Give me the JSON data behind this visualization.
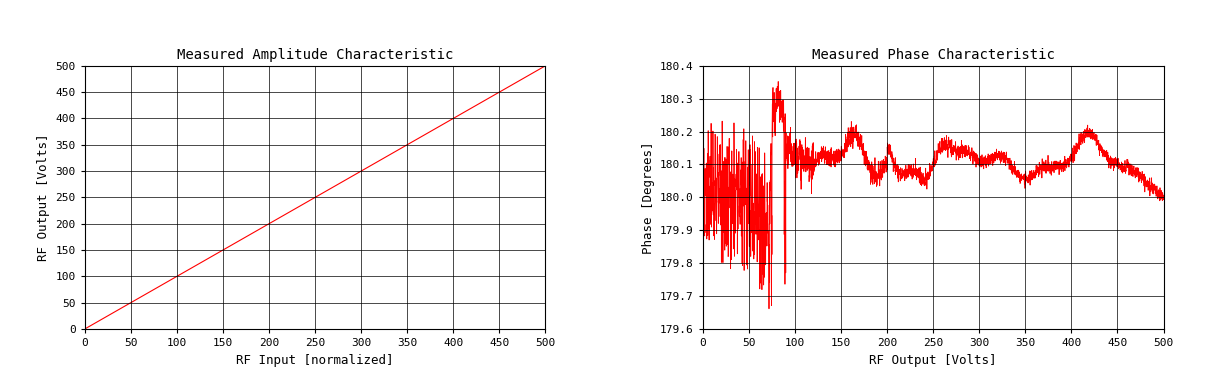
{
  "left_title": "Measured Amplitude Characteristic",
  "left_xlabel": "RF Input [normalized]",
  "left_ylabel": "RF Output [Volts]",
  "left_xlim": [
    0,
    500
  ],
  "left_ylim": [
    0,
    500
  ],
  "left_xticks": [
    0,
    50,
    100,
    150,
    200,
    250,
    300,
    350,
    400,
    450,
    500
  ],
  "left_yticks": [
    0,
    50,
    100,
    150,
    200,
    250,
    300,
    350,
    400,
    450,
    500
  ],
  "left_line_color": "#ff0000",
  "right_title": "Measured Phase Characteristic",
  "right_xlabel": "RF Output [Volts]",
  "right_ylabel": "Phase [Degrees]",
  "right_xlim": [
    0,
    500
  ],
  "right_ylim": [
    179.6,
    180.4
  ],
  "right_xticks": [
    0,
    50,
    100,
    150,
    200,
    250,
    300,
    350,
    400,
    450,
    500
  ],
  "right_yticks": [
    179.6,
    179.7,
    179.8,
    179.9,
    180.0,
    180.1,
    180.2,
    180.3,
    180.4
  ],
  "right_line_color": "#ff0000",
  "bg_color": "#ffffff",
  "font_family": "monospace",
  "title_fontsize": 10,
  "label_fontsize": 9,
  "tick_fontsize": 8,
  "figsize": [
    12.12,
    3.87
  ],
  "dpi": 100
}
